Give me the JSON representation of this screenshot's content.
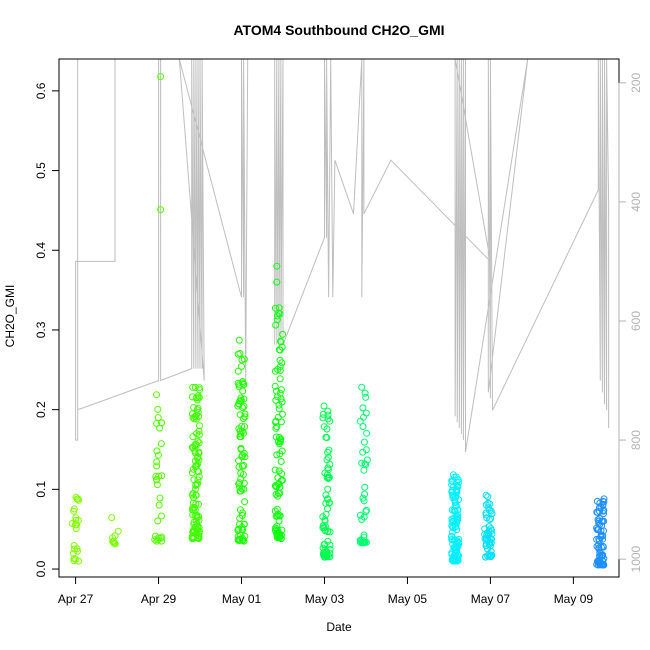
{
  "chart_data": {
    "type": "scatter",
    "title": "ATOM4 Southbound CH2O_GMI",
    "xlabel": "Date",
    "ylabel": "CH2O_GMI",
    "x_ticks": [
      "Apr 27",
      "Apr 29",
      "May 01",
      "May 03",
      "May 05",
      "May 07",
      "May 09"
    ],
    "x_tick_days": [
      0,
      2,
      4,
      6,
      8,
      10,
      12
    ],
    "xlim_days": [
      -0.4,
      13.1
    ],
    "ylim": [
      -0.01,
      0.64
    ],
    "y_ticks": [
      0.0,
      0.1,
      0.2,
      0.3,
      0.4,
      0.5,
      0.6
    ],
    "y2_ticks": [
      200,
      400,
      600,
      800,
      1000
    ],
    "y2_range": [
      1030,
      160
    ],
    "y2_note": "pressure (hPa) overlay, grey line",
    "grid": false,
    "clusters": [
      {
        "day": 0.0,
        "ymin": 0.01,
        "ymax": 0.1,
        "n": 22,
        "color": "#80ff00"
      },
      {
        "day": 0.95,
        "ymin": 0.025,
        "ymax": 0.072,
        "n": 9,
        "color": "#7aff00"
      },
      {
        "day": 2.0,
        "ymin": 0.035,
        "ymax": 0.22,
        "n": 30,
        "color": "#55ff00"
      },
      {
        "day": 2.9,
        "ymin": 0.038,
        "ymax": 0.23,
        "n": 110,
        "color": "#40ff00"
      },
      {
        "day": 4.0,
        "ymin": 0.035,
        "ymax": 0.29,
        "n": 85,
        "color": "#20ff00"
      },
      {
        "day": 4.9,
        "ymin": 0.038,
        "ymax": 0.33,
        "n": 95,
        "color": "#10ff10"
      },
      {
        "day": 6.05,
        "ymin": 0.015,
        "ymax": 0.215,
        "n": 70,
        "color": "#00ff50"
      },
      {
        "day": 6.95,
        "ymin": 0.033,
        "ymax": 0.235,
        "n": 40,
        "color": "#00ff70"
      },
      {
        "day": 9.15,
        "ymin": 0.01,
        "ymax": 0.12,
        "n": 110,
        "color": "#00f0ff"
      },
      {
        "day": 9.95,
        "ymin": 0.015,
        "ymax": 0.095,
        "n": 55,
        "color": "#00e0ff"
      },
      {
        "day": 12.65,
        "ymin": 0.005,
        "ymax": 0.088,
        "n": 75,
        "color": "#1e90ff"
      }
    ],
    "outliers": [
      {
        "day": 2.05,
        "y": 0.618,
        "color": "#55ff00"
      },
      {
        "day": 2.05,
        "y": 0.451,
        "color": "#55ff00"
      },
      {
        "day": 4.85,
        "y": 0.38,
        "color": "#10ff10"
      },
      {
        "day": 4.85,
        "y": 0.36,
        "color": "#10ff10"
      }
    ],
    "pressure_path": [
      [
        0.05,
        200
      ],
      [
        0.05,
        800
      ],
      [
        0.0,
        800
      ],
      [
        0.0,
        500
      ],
      [
        0.95,
        500
      ],
      [
        0.95,
        160
      ],
      [
        0.05,
        160
      ],
      [
        0.05,
        500
      ],
      [
        0.05,
        748
      ],
      [
        0.1,
        748
      ],
      [
        2.0,
        700
      ],
      [
        2.0,
        160
      ],
      [
        2.05,
        160
      ],
      [
        2.05,
        700
      ],
      [
        2.8,
        680
      ],
      [
        2.8,
        160
      ],
      [
        2.85,
        680
      ],
      [
        2.85,
        160
      ],
      [
        2.9,
        680
      ],
      [
        2.9,
        160
      ],
      [
        2.95,
        680
      ],
      [
        2.95,
        160
      ],
      [
        3.0,
        680
      ],
      [
        3.0,
        160
      ],
      [
        3.05,
        680
      ],
      [
        3.05,
        160
      ],
      [
        3.1,
        700
      ],
      [
        2.5,
        160
      ],
      [
        4.0,
        560
      ],
      [
        4.0,
        160
      ],
      [
        4.05,
        560
      ],
      [
        4.05,
        160
      ],
      [
        4.1,
        700
      ],
      [
        4.15,
        160
      ],
      [
        4.8,
        160
      ],
      [
        4.8,
        640
      ],
      [
        4.85,
        160
      ],
      [
        4.85,
        640
      ],
      [
        4.9,
        160
      ],
      [
        4.9,
        640
      ],
      [
        4.95,
        160
      ],
      [
        4.95,
        640
      ],
      [
        5.0,
        160
      ],
      [
        5.0,
        640
      ],
      [
        6.0,
        460
      ],
      [
        6.0,
        160
      ],
      [
        6.05,
        460
      ],
      [
        6.05,
        160
      ],
      [
        6.1,
        560
      ],
      [
        6.15,
        160
      ],
      [
        6.2,
        560
      ],
      [
        6.25,
        330
      ],
      [
        6.7,
        420
      ],
      [
        6.9,
        160
      ],
      [
        6.9,
        560
      ],
      [
        6.95,
        160
      ],
      [
        6.95,
        420
      ],
      [
        7.6,
        330
      ],
      [
        10.0,
        500
      ],
      [
        9.15,
        160
      ],
      [
        9.15,
        760
      ],
      [
        9.2,
        160
      ],
      [
        9.2,
        770
      ],
      [
        9.25,
        160
      ],
      [
        9.25,
        780
      ],
      [
        9.3,
        160
      ],
      [
        9.3,
        790
      ],
      [
        9.35,
        160
      ],
      [
        9.35,
        800
      ],
      [
        9.4,
        160
      ],
      [
        9.4,
        820
      ],
      [
        10.9,
        160
      ],
      [
        9.95,
        720
      ],
      [
        9.95,
        160
      ],
      [
        10.0,
        730
      ],
      [
        10.0,
        160
      ],
      [
        10.05,
        750
      ],
      [
        12.6,
        380
      ],
      [
        12.6,
        160
      ],
      [
        12.65,
        700
      ],
      [
        12.65,
        160
      ],
      [
        12.7,
        720
      ],
      [
        12.7,
        160
      ],
      [
        12.75,
        740
      ],
      [
        12.75,
        160
      ],
      [
        12.8,
        750
      ],
      [
        12.8,
        160
      ],
      [
        12.85,
        400
      ],
      [
        12.85,
        780
      ]
    ]
  }
}
